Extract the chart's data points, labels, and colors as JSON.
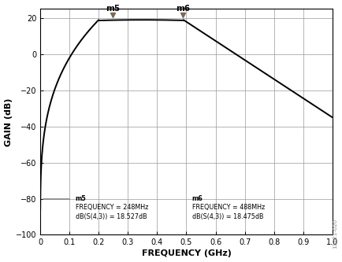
{
  "title": "",
  "xlabel": "FREQUENCY (GHz)",
  "ylabel": "GAIN (dB)",
  "xlim": [
    0,
    1.0
  ],
  "ylim": [
    -100,
    25
  ],
  "yticks": [
    20,
    0,
    -20,
    -40,
    -60,
    -80,
    -100
  ],
  "xticks": [
    0,
    0.1,
    0.2,
    0.3,
    0.4,
    0.5,
    0.6,
    0.7,
    0.8,
    0.9,
    1.0
  ],
  "xtick_labels": [
    "0",
    "0.1",
    "0.2",
    "0.3",
    "0.4",
    "0.5",
    "0.6",
    "0.7",
    "0.8",
    "0.9",
    "1.0"
  ],
  "ytick_labels": [
    "20",
    "0",
    "–20",
    "–40",
    "–60",
    "–80",
    "–100"
  ],
  "line_color": "#000000",
  "grid_color": "#999999",
  "m5_freq": 0.248,
  "m5_gain": 18.527,
  "m6_freq": 0.488,
  "m6_gain": 18.475,
  "ann_m5_line1": "m5",
  "ann_m5_line2": "FREQUENCY = 248MHz",
  "ann_m5_line3": "dB(S(4,3)) = 18.527dB",
  "ann_m6_line1": "m6",
  "ann_m6_line2": "FREQUENCY = 488MHz",
  "ann_m6_line3": "dB(S(4,3)) = 18.475dB",
  "watermark": "13221-020",
  "marker_color": "#7a6a50",
  "legend_line_color": "#888888"
}
